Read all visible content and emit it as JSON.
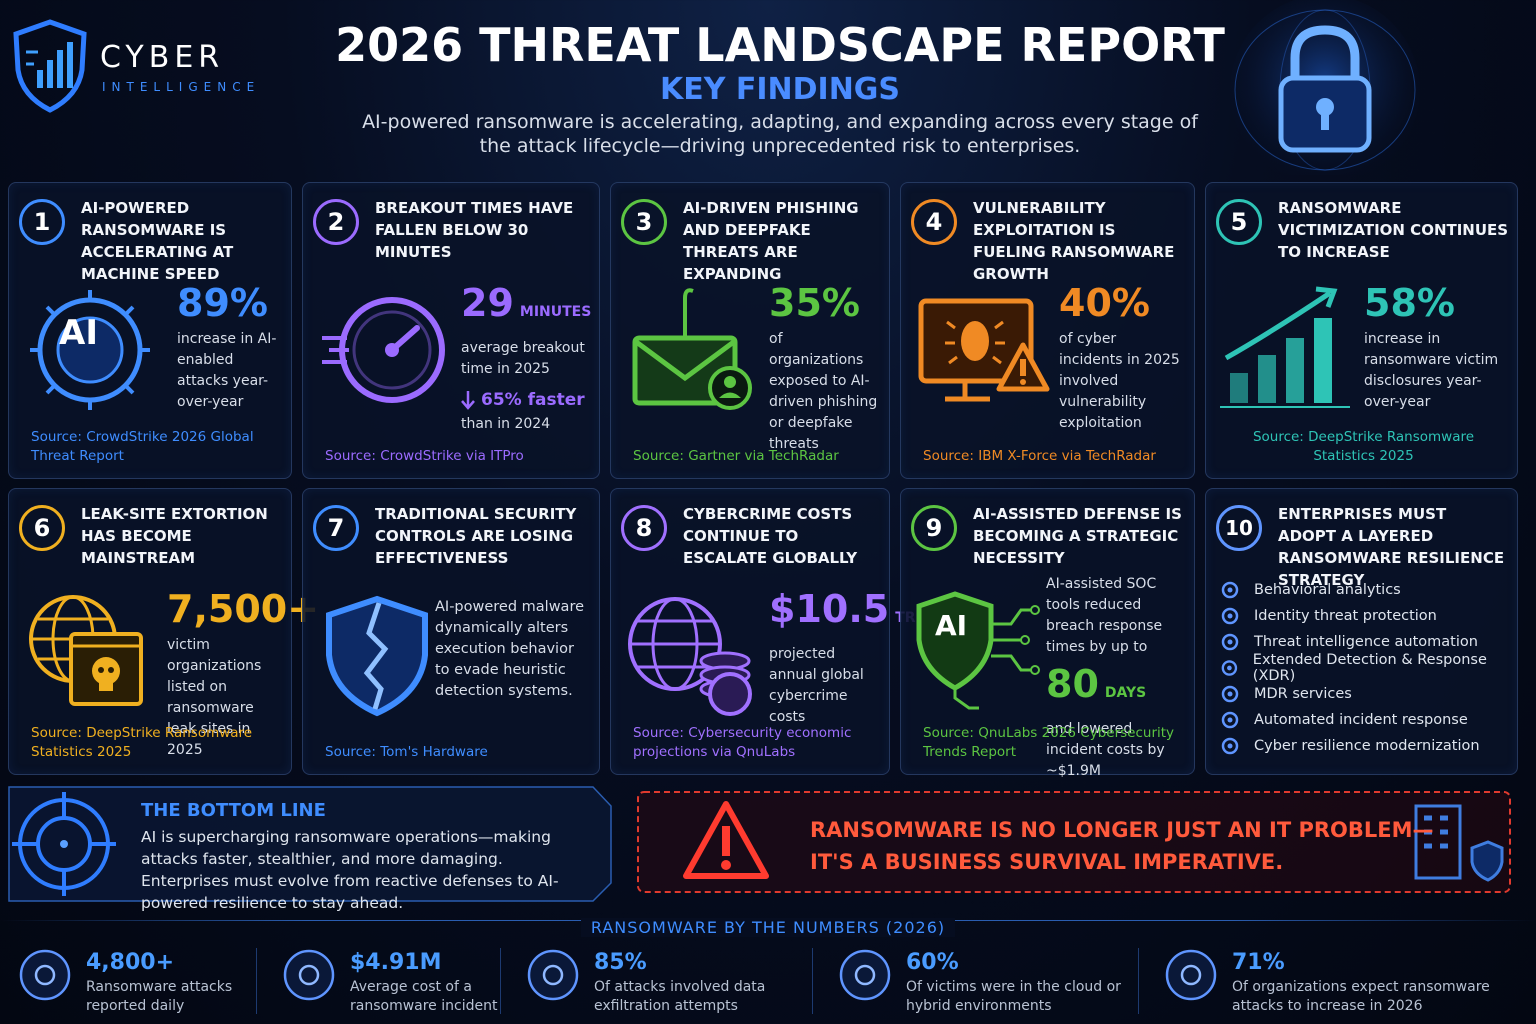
{
  "header": {
    "brand_name": "CYBER",
    "brand_tagline": "INTELLIGENCE",
    "title": "2026 THREAT LANDSCAPE REPORT",
    "subtitle": "KEY FINDINGS",
    "intro": "AI-powered ransomware is accelerating, adapting, and expanding across every stage of the attack lifecycle—driving unprecedented risk to enterprises."
  },
  "cards": [
    {
      "number": "1",
      "title": "AI-POWERED RANSOMWARE IS ACCELERATING AT MACHINE SPEED",
      "icon_text": "AI",
      "stat": "89%",
      "desc": "increase in AI-enabled attacks year-over-year",
      "source": "Source: CrowdStrike 2026 Global Threat Report"
    },
    {
      "number": "2",
      "title": "BREAKOUT TIMES HAVE FALLEN BELOW 30 MINUTES",
      "stat": "29",
      "unit": "MINUTES",
      "desc": "average breakout time in 2025",
      "delta": "65% faster",
      "delta_note": "than in 2024",
      "source": "Source: CrowdStrike via ITPro"
    },
    {
      "number": "3",
      "title": "AI-DRIVEN PHISHING AND DEEPFAKE THREATS ARE EXPANDING",
      "stat": "35%",
      "desc": "of organizations exposed to AI-driven phishing or deepfake threats",
      "source": "Source: Gartner via TechRadar"
    },
    {
      "number": "4",
      "title": "VULNERABILITY EXPLOITATION IS FUELING RANSOMWARE GROWTH",
      "stat": "40%",
      "desc": "of cyber incidents in 2025 involved vulnerability exploitation",
      "source": "Source: IBM X-Force via TechRadar"
    },
    {
      "number": "5",
      "title": "RANSOMWARE VICTIMIZATION CONTINUES TO INCREASE",
      "stat": "58%",
      "desc": "increase in ransomware victim disclosures year-over-year",
      "source": "Source: DeepStrike Ransomware Statistics 2025"
    },
    {
      "number": "6",
      "title": "LEAK-SITE EXTORTION HAS BECOME MAINSTREAM",
      "stat": "7,500+",
      "desc": "victim organizations listed on ransomware leak sites in 2025",
      "source": "Source: DeepStrike Ransomware Statistics 2025"
    },
    {
      "number": "7",
      "title": "TRADITIONAL SECURITY CONTROLS ARE LOSING EFFECTIVENESS",
      "desc": "AI-powered malware dynamically alters execution behavior to evade heuristic detection systems.",
      "source": "Source: Tom's Hardware"
    },
    {
      "number": "8",
      "title": "CYBERCRIME COSTS CONTINUE TO ESCALATE GLOBALLY",
      "stat": "$10.5",
      "unit": "TRILLION",
      "desc": "projected annual global cybercrime costs",
      "source": "Source: Cybersecurity economic projections via QnuLabs"
    },
    {
      "number": "9",
      "title": "AI-ASSISTED DEFENSE IS BECOMING A STRATEGIC NECESSITY",
      "icon_text": "AI",
      "lead": "AI-assisted SOC tools reduced breach response times by up to",
      "stat": "80",
      "unit": "DAYS",
      "desc": "and lowered incident costs by ~$1.9M",
      "source": "Source: QnuLabs 2026 Cybersecurity Trends Report"
    },
    {
      "number": "10",
      "title": "ENTERPRISES MUST ADOPT A LAYERED RANSOMWARE RESILIENCE STRATEGY",
      "list": [
        "Behavioral analytics",
        "Identity threat protection",
        "Threat intelligence automation",
        "Extended Detection & Response (XDR)",
        "MDR services",
        "Automated incident response",
        "Cyber resilience modernization"
      ]
    }
  ],
  "bottom_line": {
    "title": "THE BOTTOM LINE",
    "text": "AI is supercharging ransomware operations—making attacks faster, stealthier, and more damaging. Enterprises must evolve from reactive defenses to AI-powered resilience to stay ahead."
  },
  "alert": {
    "line1": "RANSOMWARE IS NO LONGER JUST AN IT PROBLEM—",
    "line2": "IT'S A BUSINESS SURVIVAL IMPERATIVE."
  },
  "numbers": {
    "title": "RANSOMWARE BY THE NUMBERS (2026)",
    "items": [
      {
        "value": "4,800+",
        "label": "Ransomware attacks reported daily"
      },
      {
        "value": "$4.91M",
        "label": "Average cost of a ransomware incident"
      },
      {
        "value": "85%",
        "label": "Of attacks involved data exfiltration attempts"
      },
      {
        "value": "60%",
        "label": "Of victims were in the cloud or hybrid environments"
      },
      {
        "value": "71%",
        "label": "Of organizations expect ransomware attacks to increase in 2026"
      }
    ]
  }
}
